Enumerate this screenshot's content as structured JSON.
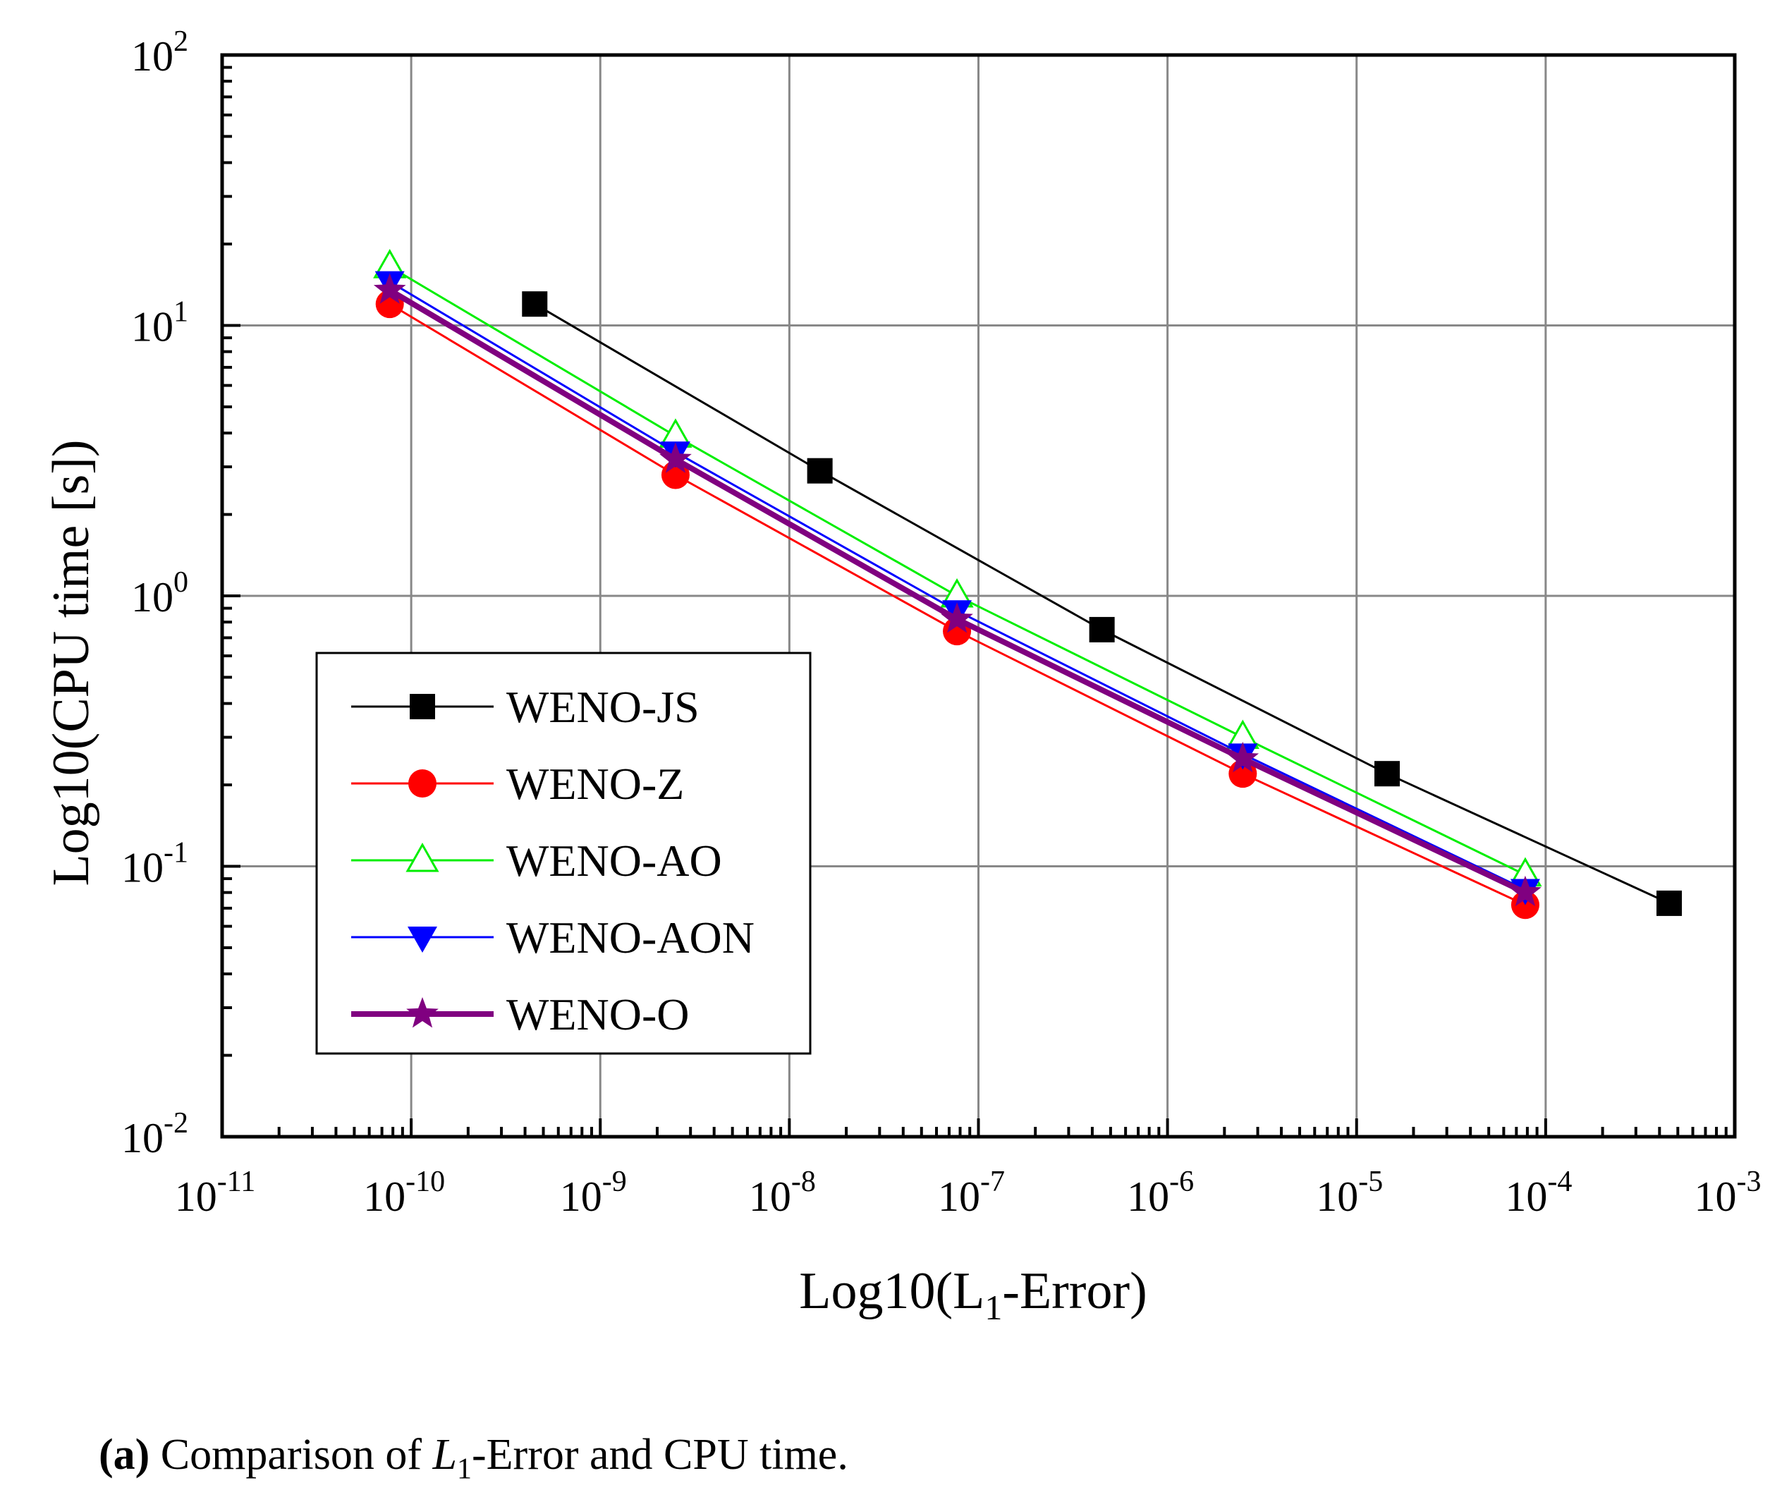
{
  "chart_data": {
    "type": "line",
    "xscale": "log",
    "yscale": "log",
    "xlabel_prefix": "Log10(L",
    "xlabel_sub": "1",
    "xlabel_suffix": "-Error)",
    "ylabel": "Log10(CPU time [s])",
    "xlim": [
      1e-11,
      0.001
    ],
    "ylim": [
      0.01,
      100.0
    ],
    "x_tick_exponents": [
      -11,
      -10,
      -9,
      -8,
      -7,
      -6,
      -5,
      -4,
      -3
    ],
    "y_tick_exponents": [
      -2,
      -1,
      0,
      1,
      2
    ],
    "tick_base": "10",
    "grid": true,
    "legend_position": "center-left",
    "series": [
      {
        "name": "WENO-JS",
        "color": "#000000",
        "marker": "square",
        "line_style": "thin",
        "x": [
          4.5e-10,
          1.45e-08,
          4.5e-07,
          1.45e-05,
          0.00045
        ],
        "y": [
          12,
          2.9,
          0.75,
          0.22,
          0.073
        ]
      },
      {
        "name": "WENO-Z",
        "color": "#ff0000",
        "marker": "circle",
        "line_style": "thin",
        "x": [
          7.7e-11,
          2.5e-09,
          7.7e-08,
          2.5e-06,
          7.8e-05
        ],
        "y": [
          12,
          2.8,
          0.74,
          0.22,
          0.072
        ]
      },
      {
        "name": "WENO-AO",
        "color": "#00ee00",
        "marker": "triangle-up-open",
        "line_style": "thin",
        "x": [
          7.7e-11,
          2.5e-09,
          7.7e-08,
          2.5e-06,
          7.8e-05
        ],
        "y": [
          16.5,
          3.9,
          1.0,
          0.3,
          0.093
        ]
      },
      {
        "name": "WENO-AON",
        "color": "#0000ff",
        "marker": "triangle-down",
        "line_style": "thin",
        "x": [
          7.7e-11,
          2.5e-09,
          7.7e-08,
          2.5e-06,
          7.8e-05
        ],
        "y": [
          14.5,
          3.4,
          0.88,
          0.26,
          0.082
        ]
      },
      {
        "name": "WENO-O",
        "color": "#800080",
        "marker": "star",
        "line_style": "thick",
        "x": [
          7.7e-11,
          2.5e-09,
          7.7e-08,
          2.5e-06,
          7.8e-05
        ],
        "y": [
          13.5,
          3.2,
          0.82,
          0.25,
          0.08
        ]
      }
    ]
  },
  "caption": {
    "label": "(a)",
    "text_before": "Comparison of",
    "symbol": "L",
    "symbol_sub": "1",
    "text_after": "-Error and CPU time."
  }
}
